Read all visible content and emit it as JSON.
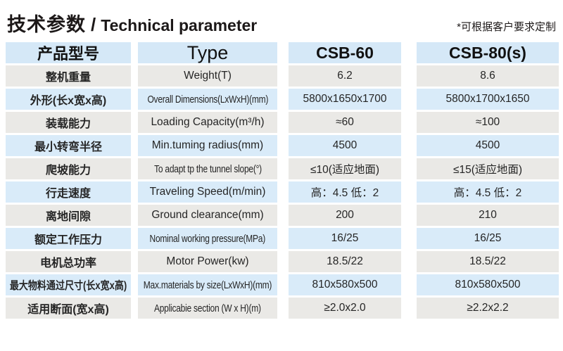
{
  "page": {
    "title_zh": "技术参数",
    "title_sep": "/",
    "title_en": "Technical parameter",
    "note": "*可根据客户要求定制"
  },
  "colors": {
    "header_bg": "#d5e8f7",
    "row_blue": "#d9ebf9",
    "row_gray": "#eae9e6",
    "text": "#252525"
  },
  "table": {
    "headers": [
      "产品型号",
      "Type",
      "CSB-60",
      "CSB-80(s)"
    ],
    "rows": [
      {
        "zh": "整机重量",
        "en": "Weight(T)",
        "v1": "6.2",
        "v2": "8.6"
      },
      {
        "zh": "外形(长x宽x高)",
        "en": "Overall Dimensions(LxWxH)(mm)",
        "en_condensed": true,
        "v1": "5800x1650x1700",
        "v2": "5800x1700x1650"
      },
      {
        "zh": "装载能力",
        "en": "Loading Capacity(m³/h)",
        "v1": "≈60",
        "v2": "≈100"
      },
      {
        "zh": "最小转弯半径",
        "en": "Min.tuming radius(mm)",
        "v1": "4500",
        "v2": "4500"
      },
      {
        "zh": "爬坡能力",
        "en": "To adapt tp the tunnel slope(°)",
        "en_condensed": true,
        "v1": "≤10(适应地面)",
        "v2": "≤15(适应地面)"
      },
      {
        "zh": "行走速度",
        "en": "Traveling Speed(m/min)",
        "v1": "高：4.5 低：2",
        "v2": "高：4.5 低：2"
      },
      {
        "zh": "离地间隙",
        "en": "Ground clearance(mm)",
        "v1": "200",
        "v2": "210"
      },
      {
        "zh": "额定工作压力",
        "en": "Nominal working pressure(MPa)",
        "en_condensed": true,
        "v1": "16/25",
        "v2": "16/25"
      },
      {
        "zh": "电机总功率",
        "en": "Motor Power(kw)",
        "v1": "18.5/22",
        "v2": "18.5/22"
      },
      {
        "zh": "最大物料通过尺寸(长x宽x高)",
        "zh_condensed": true,
        "en": "Max.materials by size(LxWxH)(mm)",
        "en_condensed": true,
        "v1": "810x580x500",
        "v2": "810x580x500"
      },
      {
        "zh": "适用断面(宽x高)",
        "en": "Applicabie section (W x H)(m)",
        "en_condensed": true,
        "v1": "≥2.0x2.0",
        "v2": "≥2.2x2.2"
      }
    ]
  }
}
